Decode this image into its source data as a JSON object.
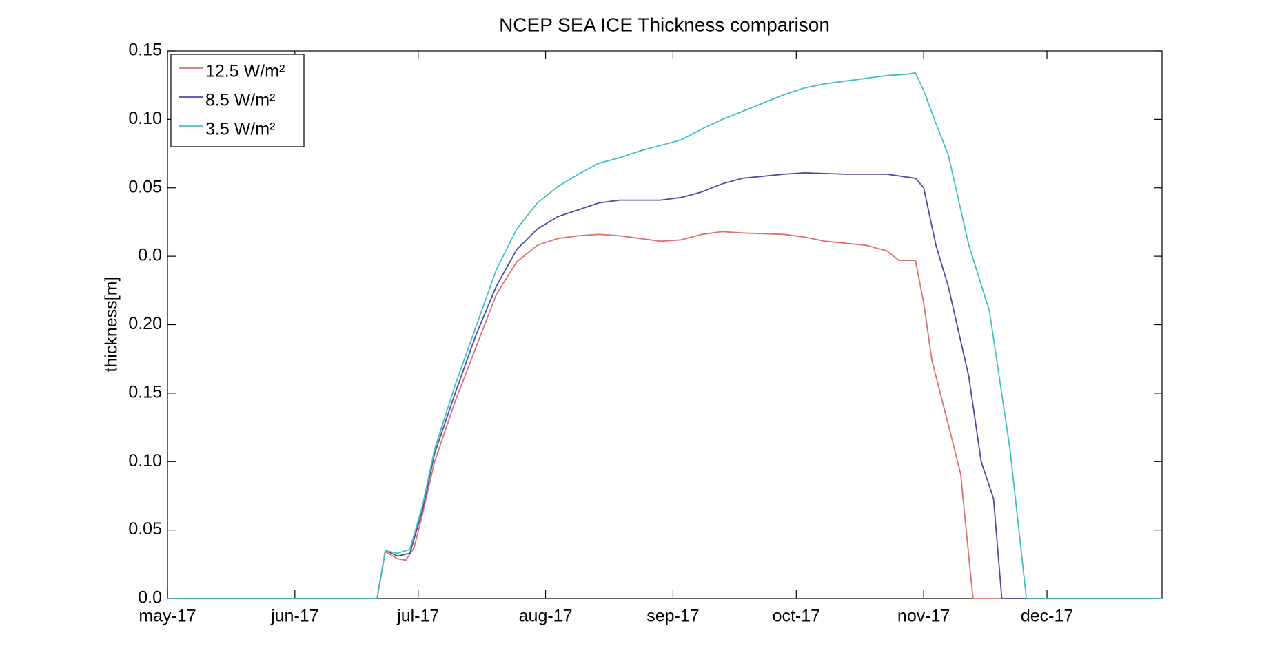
{
  "chart_data": {
    "type": "line",
    "title": "NCEP SEA ICE Thickness comparison",
    "y_label": "thickness[m]",
    "xlim": [
      0,
      242
    ],
    "ylim": [
      0,
      0.4
    ],
    "xticks": [
      {
        "value": 0,
        "label": "may-17"
      },
      {
        "value": 31,
        "label": "jun-17"
      },
      {
        "value": 61,
        "label": "jul-17"
      },
      {
        "value": 92,
        "label": "aug-17"
      },
      {
        "value": 123,
        "label": "sep-17"
      },
      {
        "value": 153,
        "label": "oct-17"
      },
      {
        "value": 184,
        "label": "nov-17"
      },
      {
        "value": 214,
        "label": "dec-17"
      }
    ],
    "yticks": [
      {
        "value": 0,
        "label": "0.0"
      },
      0.05,
      {
        "value": 0.1,
        "label": "0.10"
      },
      0.15,
      {
        "value": 0.2,
        "label": "0.20"
      },
      {
        "value": 0.25,
        "label": "0.0"
      },
      {
        "value": 0.3,
        "label": "0.05"
      },
      {
        "value": 0.35,
        "label": "0.10"
      },
      {
        "value": 0.4,
        "label": "0.15"
      }
    ],
    "grid": false,
    "legend": "upper left",
    "series": [
      {
        "name": "12.5 W/m²",
        "color": "#e07070",
        "x": [
          0,
          51,
          53,
          56,
          58,
          60,
          62,
          65,
          70,
          75,
          80,
          85,
          90,
          95,
          100,
          105,
          110,
          115,
          120,
          125,
          130,
          135,
          140,
          150,
          155,
          160,
          170,
          175,
          178,
          182,
          184,
          186,
          190,
          193,
          196,
          242
        ],
        "values": [
          0,
          0,
          0.034,
          0.029,
          0.028,
          0.037,
          0.061,
          0.1,
          0.144,
          0.183,
          0.222,
          0.246,
          0.258,
          0.263,
          0.265,
          0.266,
          0.265,
          0.263,
          0.261,
          0.262,
          0.266,
          0.268,
          0.267,
          0.266,
          0.264,
          0.261,
          0.258,
          0.254,
          0.247,
          0.247,
          0.216,
          0.174,
          0.127,
          0.091,
          0,
          0
        ]
      },
      {
        "name": "8.5 W/m²",
        "color": "#4a4aa8",
        "x": [
          0,
          51,
          53,
          56,
          59,
          62,
          65,
          70,
          75,
          80,
          85,
          90,
          95,
          100,
          105,
          110,
          120,
          125,
          130,
          135,
          140,
          150,
          155,
          165,
          175,
          182,
          184,
          187,
          190,
          195,
          198,
          201,
          203,
          242
        ],
        "values": [
          0,
          0,
          0.035,
          0.031,
          0.033,
          0.064,
          0.106,
          0.15,
          0.192,
          0.228,
          0.255,
          0.27,
          0.279,
          0.284,
          0.289,
          0.291,
          0.291,
          0.293,
          0.297,
          0.303,
          0.307,
          0.31,
          0.311,
          0.31,
          0.31,
          0.307,
          0.3,
          0.258,
          0.228,
          0.162,
          0.1,
          0.073,
          0,
          0
        ]
      },
      {
        "name": "3.5 W/m²",
        "color": "#40c0c0",
        "x": [
          0,
          51,
          53,
          56,
          59,
          62,
          65,
          70,
          75,
          80,
          85,
          90,
          95,
          100,
          105,
          110,
          115,
          120,
          125,
          130,
          135,
          140,
          145,
          150,
          155,
          160,
          165,
          170,
          175,
          180,
          182,
          184,
          187,
          190,
          195,
          200,
          205,
          209,
          242
        ],
        "values": [
          0,
          0,
          0.035,
          0.033,
          0.036,
          0.067,
          0.109,
          0.156,
          0.198,
          0.24,
          0.27,
          0.289,
          0.301,
          0.31,
          0.318,
          0.322,
          0.327,
          0.331,
          0.335,
          0.343,
          0.35,
          0.356,
          0.362,
          0.368,
          0.373,
          0.376,
          0.378,
          0.38,
          0.382,
          0.383,
          0.384,
          0.371,
          0.347,
          0.324,
          0.258,
          0.21,
          0.109,
          0,
          0
        ]
      }
    ]
  }
}
